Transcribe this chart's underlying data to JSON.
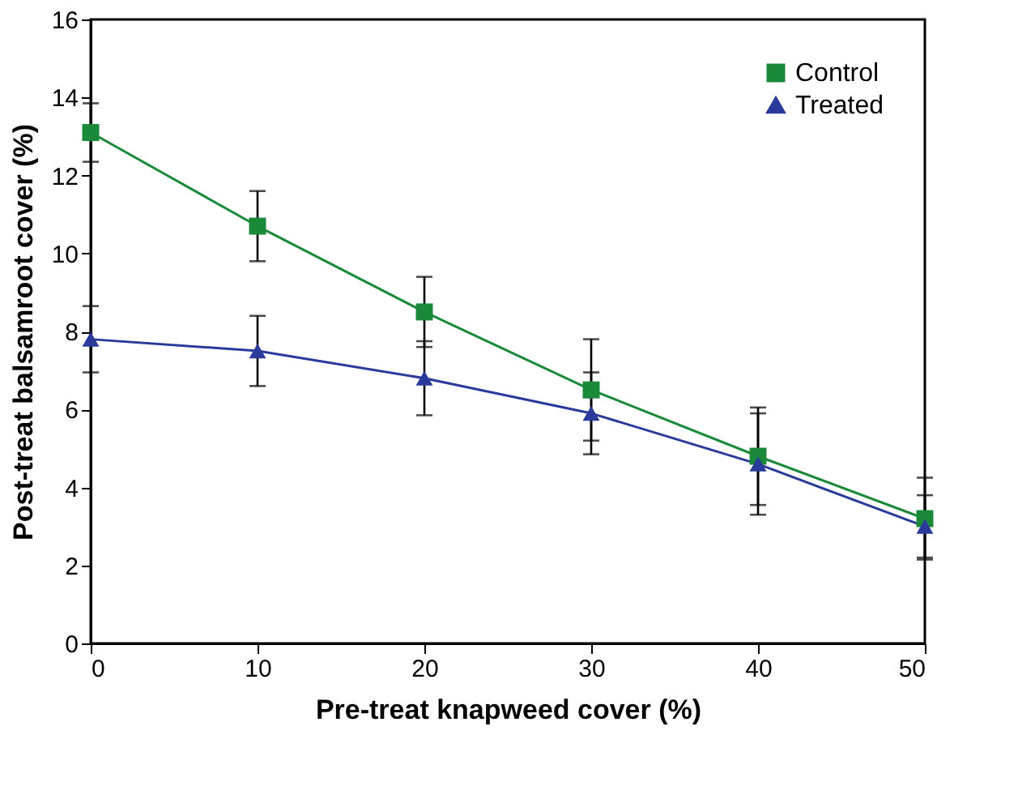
{
  "chart_data": {
    "type": "line",
    "xlabel": "Pre-treat knapweed cover (%)",
    "ylabel": "Post-treat balsamroot cover (%)",
    "x": [
      0,
      10,
      20,
      30,
      40,
      50
    ],
    "series": [
      {
        "name": "Control",
        "color": "#1a8a3a",
        "marker": "square",
        "values": [
          13.1,
          10.7,
          8.5,
          6.5,
          4.8,
          3.2
        ],
        "errors": [
          0.75,
          0.9,
          0.9,
          1.3,
          1.25,
          1.05
        ]
      },
      {
        "name": "Treated",
        "color": "#2a3a9a",
        "marker": "triangle",
        "values": [
          7.8,
          7.5,
          6.8,
          5.9,
          4.6,
          3.0
        ],
        "errors": [
          0.85,
          0.9,
          0.95,
          1.05,
          1.3,
          0.8
        ]
      }
    ],
    "xlim": [
      0,
      50
    ],
    "xticks": [
      0,
      10,
      20,
      30,
      40,
      50
    ],
    "ylim": [
      0,
      16
    ],
    "yticks": [
      0,
      2,
      4,
      6,
      8,
      10,
      12,
      14,
      16
    ],
    "grid": false,
    "legend": "top right"
  }
}
